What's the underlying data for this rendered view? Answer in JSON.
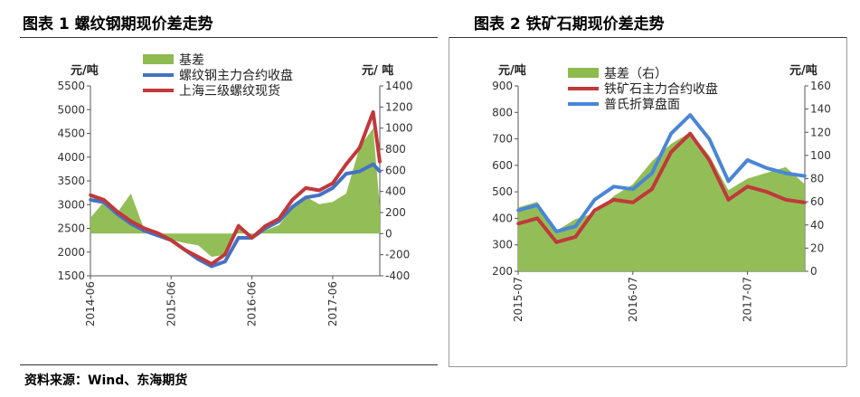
{
  "titles": {
    "fig1": "图表 1 螺纹钢期现价差走势",
    "fig2": "图表 2 铁矿石期现价差走势"
  },
  "source": "资料来源：Wind、东海期货",
  "chart_data": [
    {
      "type": "line",
      "left_unit": "元/吨",
      "right_unit": "元/ 吨",
      "x_ticks": [
        "2014-06",
        "2015-06",
        "2016-06",
        "2017-06"
      ],
      "ylim_left": [
        1500,
        5500
      ],
      "y_ticks_left": [
        1500,
        2000,
        2500,
        3000,
        3500,
        4000,
        4500,
        5000,
        5500
      ],
      "ylim_right": [
        -400,
        1400
      ],
      "y_ticks_right": [
        -400,
        -200,
        0,
        200,
        400,
        600,
        800,
        1000,
        1200,
        1400
      ],
      "legend_position": "top",
      "series": [
        {
          "name": "基差",
          "kind": "area",
          "axis": "right",
          "color": "#8dbb4e",
          "x": [
            "2014-06",
            "2014-08",
            "2014-10",
            "2014-12",
            "2015-02",
            "2015-04",
            "2015-06",
            "2015-08",
            "2015-10",
            "2015-12",
            "2016-02",
            "2016-04",
            "2016-06",
            "2016-08",
            "2016-10",
            "2016-12",
            "2017-02",
            "2017-04",
            "2017-06",
            "2017-08",
            "2017-10",
            "2017-12",
            "2018-01"
          ],
          "values": [
            150,
            300,
            200,
            380,
            40,
            -20,
            -60,
            -90,
            -110,
            -220,
            -200,
            100,
            -30,
            30,
            80,
            240,
            350,
            280,
            300,
            380,
            820,
            1000,
            260
          ]
        },
        {
          "name": "螺纹钢主力合约收盘",
          "kind": "line",
          "axis": "left",
          "color": "#4472c4",
          "x": [
            "2014-06",
            "2014-08",
            "2014-10",
            "2014-12",
            "2015-02",
            "2015-04",
            "2015-06",
            "2015-08",
            "2015-10",
            "2015-12",
            "2016-02",
            "2016-04",
            "2016-06",
            "2016-08",
            "2016-10",
            "2016-12",
            "2017-02",
            "2017-04",
            "2017-06",
            "2017-08",
            "2017-10",
            "2017-12",
            "2018-01"
          ],
          "values": [
            3100,
            3050,
            2800,
            2600,
            2450,
            2350,
            2250,
            2050,
            1850,
            1700,
            1800,
            2300,
            2300,
            2500,
            2650,
            2950,
            3150,
            3200,
            3350,
            3650,
            3700,
            3850,
            3700
          ]
        },
        {
          "name": "上海三级螺纹现货",
          "kind": "line",
          "axis": "left",
          "color": "#c0393b",
          "x": [
            "2014-06",
            "2014-08",
            "2014-10",
            "2014-12",
            "2015-02",
            "2015-04",
            "2015-06",
            "2015-08",
            "2015-10",
            "2015-12",
            "2016-02",
            "2016-04",
            "2016-06",
            "2016-08",
            "2016-10",
            "2016-12",
            "2017-02",
            "2017-04",
            "2017-06",
            "2017-08",
            "2017-10",
            "2017-12",
            "2018-01"
          ],
          "values": [
            3200,
            3100,
            2850,
            2650,
            2500,
            2400,
            2250,
            2050,
            1900,
            1750,
            1950,
            2550,
            2300,
            2550,
            2700,
            3100,
            3350,
            3300,
            3450,
            3850,
            4200,
            4950,
            3900
          ]
        }
      ]
    },
    {
      "type": "line",
      "left_unit": "元/吨",
      "right_unit": "元/吨",
      "x_ticks": [
        "2015-07",
        "2016-07",
        "2017-07"
      ],
      "ylim_left": [
        200,
        900
      ],
      "y_ticks_left": [
        200,
        300,
        400,
        500,
        600,
        700,
        800,
        900
      ],
      "ylim_right": [
        0,
        160
      ],
      "y_ticks_right": [
        0,
        20,
        40,
        60,
        80,
        100,
        120,
        140,
        160
      ],
      "legend_position": "top",
      "series": [
        {
          "name": "基差（右）",
          "kind": "area",
          "axis": "right",
          "color": "#8dbb4e",
          "x": [
            "2015-07",
            "2015-09",
            "2015-11",
            "2016-01",
            "2016-03",
            "2016-05",
            "2016-07",
            "2016-09",
            "2016-11",
            "2017-01",
            "2017-03",
            "2017-05",
            "2017-07",
            "2017-09",
            "2017-11",
            "2018-01"
          ],
          "values": [
            55,
            60,
            35,
            45,
            50,
            65,
            75,
            95,
            110,
            120,
            100,
            70,
            80,
            85,
            90,
            75
          ]
        },
        {
          "name": "铁矿石主力合约收盘",
          "kind": "line",
          "axis": "left",
          "color": "#c0393b",
          "x": [
            "2015-07",
            "2015-09",
            "2015-11",
            "2016-01",
            "2016-03",
            "2016-05",
            "2016-07",
            "2016-09",
            "2016-11",
            "2017-01",
            "2017-03",
            "2017-05",
            "2017-07",
            "2017-09",
            "2017-11",
            "2018-01"
          ],
          "values": [
            380,
            400,
            310,
            330,
            430,
            470,
            460,
            510,
            650,
            720,
            620,
            470,
            520,
            500,
            470,
            460
          ]
        },
        {
          "name": "普氏折算盘面",
          "kind": "line",
          "axis": "left",
          "color": "#4a86d4",
          "x": [
            "2015-07",
            "2015-09",
            "2015-11",
            "2016-01",
            "2016-03",
            "2016-05",
            "2016-07",
            "2016-09",
            "2016-11",
            "2017-01",
            "2017-03",
            "2017-05",
            "2017-07",
            "2017-09",
            "2017-11",
            "2018-01"
          ],
          "values": [
            430,
            450,
            350,
            370,
            470,
            520,
            510,
            570,
            720,
            790,
            700,
            540,
            620,
            590,
            570,
            560
          ]
        }
      ]
    }
  ]
}
